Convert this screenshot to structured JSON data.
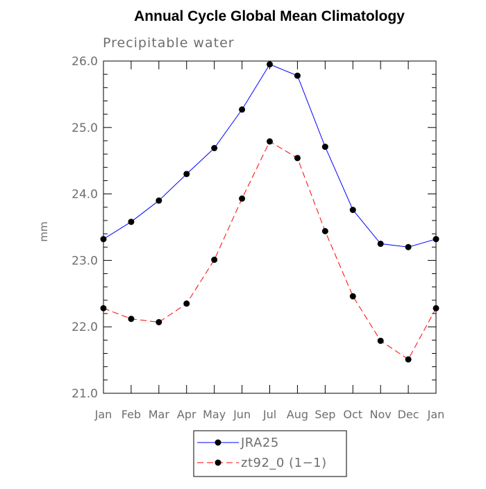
{
  "chart_data": {
    "type": "line",
    "title": "Annual Cycle Global Mean Climatology",
    "subtitle": "Precipitable water",
    "xlabel": "",
    "ylabel": "mm",
    "categories": [
      "Jan",
      "Feb",
      "Mar",
      "Apr",
      "May",
      "Jun",
      "Jul",
      "Aug",
      "Sep",
      "Oct",
      "Nov",
      "Dec",
      "Jan"
    ],
    "ylim": [
      21.0,
      26.0
    ],
    "yticks": [
      21.0,
      22.0,
      23.0,
      24.0,
      25.0,
      26.0
    ],
    "ytick_labels": [
      "21.0",
      "22.0",
      "23.0",
      "24.0",
      "25.0",
      "26.0"
    ],
    "series": [
      {
        "name": "JRA25",
        "color": "#0000ff",
        "dash": "solid",
        "values": [
          23.32,
          23.58,
          23.9,
          24.3,
          24.69,
          25.27,
          25.95,
          25.78,
          24.71,
          23.76,
          23.25,
          23.2,
          23.32
        ]
      },
      {
        "name": "zt92_0 (1−1)",
        "color": "#ff0000",
        "dash": "dashed",
        "values": [
          22.28,
          22.12,
          22.07,
          22.35,
          23.01,
          23.93,
          24.79,
          24.54,
          23.44,
          22.46,
          21.79,
          21.51,
          22.28
        ]
      }
    ],
    "legend_position": "bottom-center",
    "marker": "filled-circle",
    "marker_color": "#000000"
  }
}
